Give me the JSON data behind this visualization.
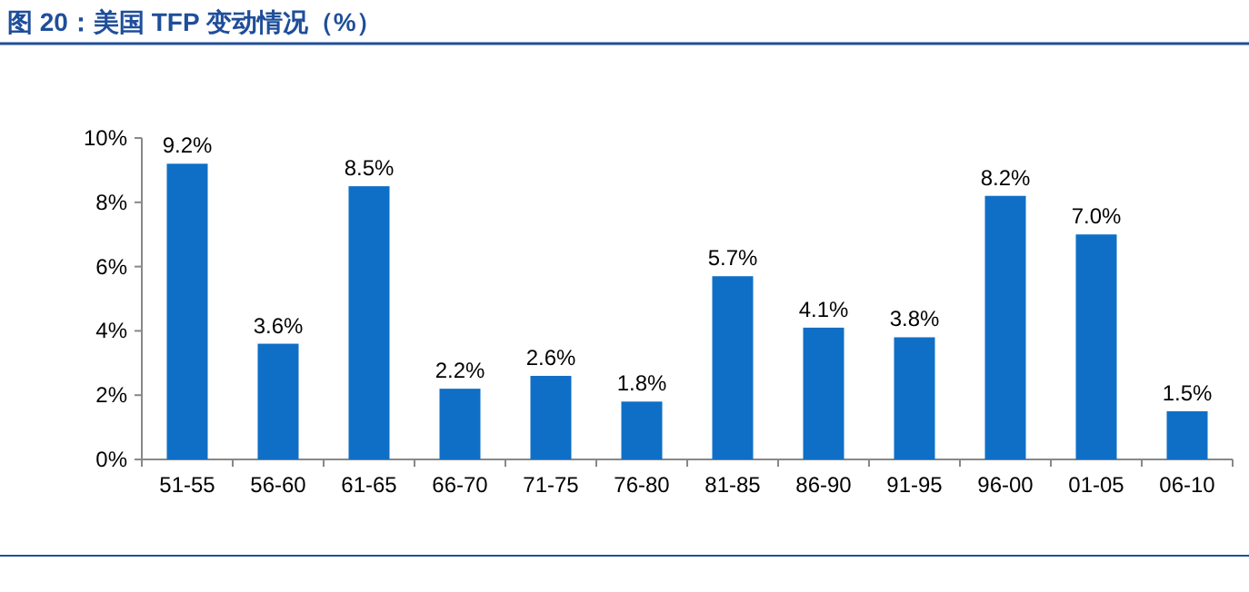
{
  "chart_data": {
    "type": "bar",
    "title": "图 20：美国 TFP 变动情况（%）",
    "categories": [
      "51-55",
      "56-60",
      "61-65",
      "66-70",
      "71-75",
      "76-80",
      "81-85",
      "86-90",
      "91-95",
      "96-00",
      "01-05",
      "06-10"
    ],
    "values": [
      9.2,
      3.6,
      8.5,
      2.2,
      2.6,
      1.8,
      5.7,
      4.1,
      3.8,
      8.2,
      7.0,
      1.5
    ],
    "value_labels": [
      "9.2%",
      "3.6%",
      "8.5%",
      "2.2%",
      "2.6%",
      "1.8%",
      "5.7%",
      "4.1%",
      "3.8%",
      "8.2%",
      "7.0%",
      "1.5%"
    ],
    "color": "#0f6fc6",
    "ylim": [
      0,
      10
    ],
    "yticks": [
      {
        "value": 0,
        "label": "0%"
      },
      {
        "value": 2,
        "label": "2%"
      },
      {
        "value": 4,
        "label": "4%"
      },
      {
        "value": 6,
        "label": "6%"
      },
      {
        "value": 8,
        "label": "8%"
      },
      {
        "value": 10,
        "label": "10%"
      }
    ],
    "grid": false
  }
}
